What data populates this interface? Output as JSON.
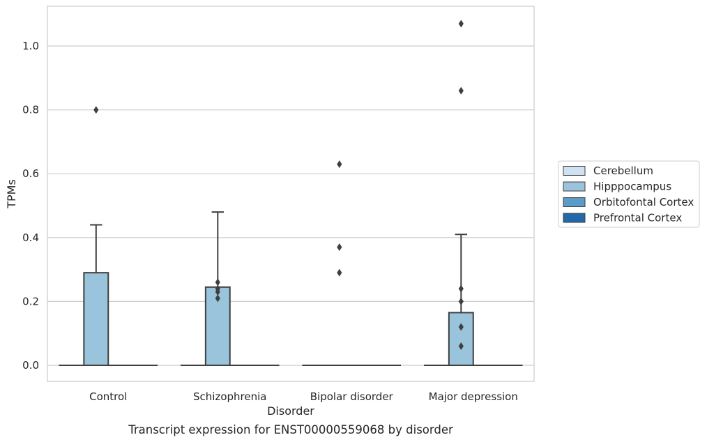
{
  "chart_data": {
    "type": "box",
    "xlabel": "Disorder",
    "ylabel": "TPMs",
    "caption": "Transcript expression for ENST00000559068 by disorder",
    "categories": [
      "Control",
      "Schizophrenia",
      "Bipolar disorder",
      "Major depression"
    ],
    "ylim": [
      -0.05,
      1.12
    ],
    "yticks": [
      0.0,
      0.2,
      0.4,
      0.6,
      0.8,
      1.0
    ],
    "ytick_labels": [
      "0.0",
      "0.2",
      "0.4",
      "0.6",
      "0.8",
      "1.0"
    ],
    "grid": "horizontal",
    "legend_placement": "right",
    "series": [
      {
        "name": "Cerebellum",
        "color": "#d0e1f2",
        "boxes": [
          {
            "category": "Control",
            "q1": 0.0,
            "median": 0.0,
            "q3": 0.0,
            "whislo": 0.0,
            "whishi": 0.0,
            "fliers": []
          },
          {
            "category": "Schizophrenia",
            "q1": 0.0,
            "median": 0.0,
            "q3": 0.0,
            "whislo": 0.0,
            "whishi": 0.0,
            "fliers": []
          },
          {
            "category": "Bipolar disorder",
            "q1": 0.0,
            "median": 0.0,
            "q3": 0.0,
            "whislo": 0.0,
            "whishi": 0.0,
            "fliers": []
          },
          {
            "category": "Major depression",
            "q1": 0.0,
            "median": 0.0,
            "q3": 0.0,
            "whislo": 0.0,
            "whishi": 0.0,
            "fliers": []
          }
        ]
      },
      {
        "name": "Hipppocampus",
        "color": "#9ac3dc",
        "boxes": [
          {
            "category": "Control",
            "q1": 0.0,
            "median": 0.0,
            "q3": 0.29,
            "whislo": 0.0,
            "whishi": 0.44,
            "fliers": [
              0.8
            ]
          },
          {
            "category": "Schizophrenia",
            "q1": 0.0,
            "median": 0.0,
            "q3": 0.245,
            "whislo": 0.0,
            "whishi": 0.48,
            "fliers": [
              0.21,
              0.23,
              0.24,
              0.26
            ]
          },
          {
            "category": "Bipolar disorder",
            "q1": 0.0,
            "median": 0.0,
            "q3": 0.0,
            "whislo": 0.0,
            "whishi": 0.0,
            "fliers": [
              0.29,
              0.37,
              0.63
            ]
          },
          {
            "category": "Major depression",
            "q1": 0.0,
            "median": 0.0,
            "q3": 0.165,
            "whislo": 0.0,
            "whishi": 0.41,
            "fliers": [
              0.06,
              0.12,
              0.2,
              0.24,
              0.86,
              1.07
            ]
          }
        ]
      },
      {
        "name": "Orbitofontal Cortex",
        "color": "#5a9bc8",
        "boxes": [
          {
            "category": "Control",
            "q1": 0.0,
            "median": 0.0,
            "q3": 0.0,
            "whislo": 0.0,
            "whishi": 0.0,
            "fliers": []
          },
          {
            "category": "Schizophrenia",
            "q1": 0.0,
            "median": 0.0,
            "q3": 0.0,
            "whislo": 0.0,
            "whishi": 0.0,
            "fliers": []
          },
          {
            "category": "Bipolar disorder",
            "q1": 0.0,
            "median": 0.0,
            "q3": 0.0,
            "whislo": 0.0,
            "whishi": 0.0,
            "fliers": []
          },
          {
            "category": "Major depression",
            "q1": 0.0,
            "median": 0.0,
            "q3": 0.0,
            "whislo": 0.0,
            "whishi": 0.0,
            "fliers": []
          }
        ]
      },
      {
        "name": "Prefrontal Cortex",
        "color": "#2369aa",
        "boxes": [
          {
            "category": "Control",
            "q1": 0.0,
            "median": 0.0,
            "q3": 0.0,
            "whislo": 0.0,
            "whishi": 0.0,
            "fliers": []
          },
          {
            "category": "Schizophrenia",
            "q1": 0.0,
            "median": 0.0,
            "q3": 0.0,
            "whislo": 0.0,
            "whishi": 0.0,
            "fliers": []
          },
          {
            "category": "Bipolar disorder",
            "q1": 0.0,
            "median": 0.0,
            "q3": 0.0,
            "whislo": 0.0,
            "whishi": 0.0,
            "fliers": []
          },
          {
            "category": "Major depression",
            "q1": 0.0,
            "median": 0.0,
            "q3": 0.0,
            "whislo": 0.0,
            "whishi": 0.0,
            "fliers": []
          }
        ]
      }
    ]
  }
}
